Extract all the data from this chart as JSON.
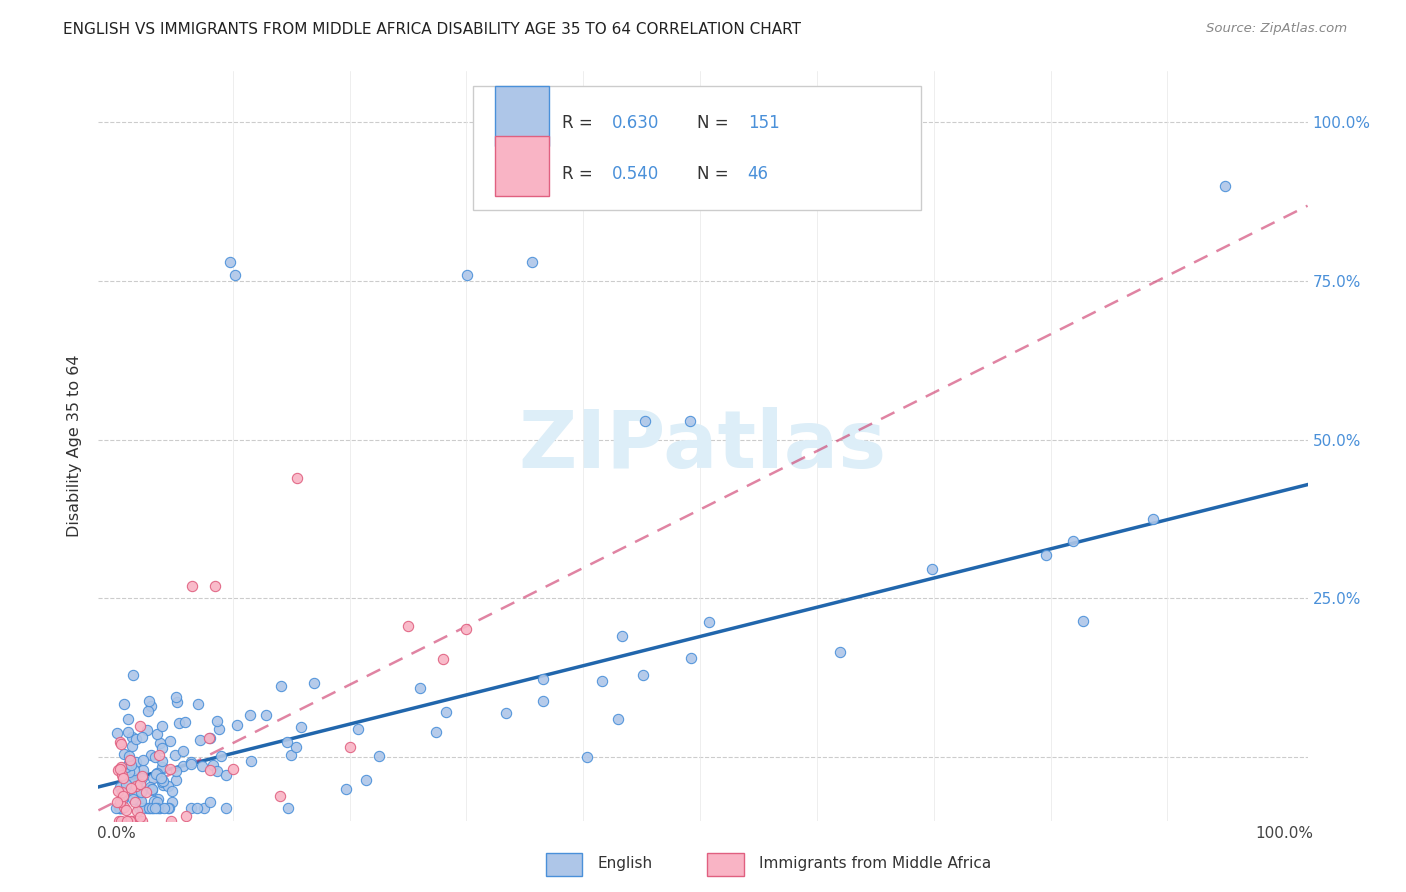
{
  "title": "ENGLISH VS IMMIGRANTS FROM MIDDLE AFRICA DISABILITY AGE 35 TO 64 CORRELATION CHART",
  "source": "Source: ZipAtlas.com",
  "ylabel": "Disability Age 35 to 64",
  "english_R": 0.63,
  "english_N": 151,
  "immigrants_R": 0.54,
  "immigrants_N": 46,
  "english_color": "#aec6e8",
  "english_edge_color": "#4a90d9",
  "english_line_color": "#2166ac",
  "immigrants_color": "#f9b4c5",
  "immigrants_edge_color": "#e06080",
  "immigrants_line_color": "#cc3366",
  "watermark_color": "#d8e8f0",
  "background_color": "#ffffff",
  "grid_color": "#cccccc",
  "right_tick_color": "#4a90d9",
  "title_color": "#222222",
  "source_color": "#888888"
}
